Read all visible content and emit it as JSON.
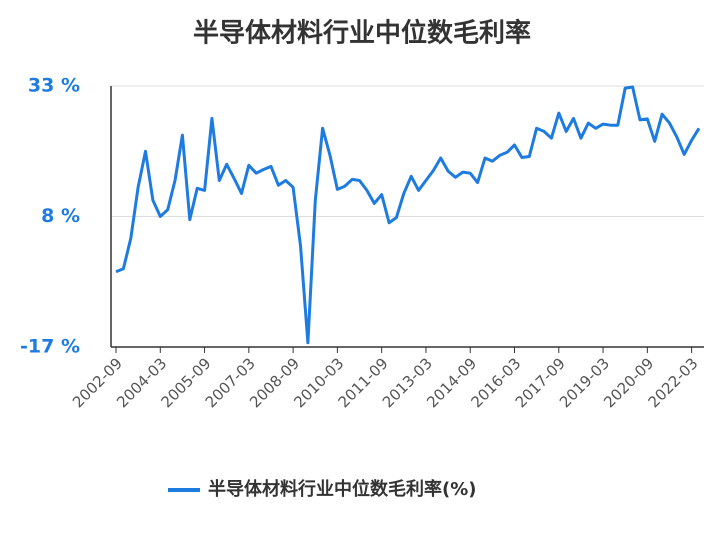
{
  "chart_data": {
    "type": "line",
    "title": "半导体材料行业中位数毛利率",
    "categories": [
      "2002-09",
      null,
      null,
      null,
      null,
      null,
      "2004-03",
      null,
      null,
      null,
      null,
      null,
      "2005-09",
      null,
      null,
      null,
      null,
      null,
      "2007-03",
      null,
      null,
      null,
      null,
      null,
      "2008-09",
      null,
      null,
      null,
      null,
      null,
      "2010-03",
      null,
      null,
      null,
      null,
      null,
      "2011-09",
      null,
      null,
      null,
      null,
      null,
      "2013-03",
      null,
      null,
      null,
      null,
      null,
      "2014-09",
      null,
      null,
      null,
      null,
      null,
      "2016-03",
      null,
      null,
      null,
      null,
      null,
      "2017-09",
      null,
      null,
      null,
      null,
      null,
      "2019-03",
      null,
      null,
      null,
      null,
      null,
      "2020-09",
      null,
      null,
      null,
      null,
      null,
      "2022-03",
      null
    ],
    "series": [
      {
        "name": "半导体材料行业中位数毛利率(%)",
        "color": "#1e7be0",
        "values": [
          -2.6,
          -2.0,
          3.8,
          13.6,
          20.5,
          11.1,
          8.0,
          9.3,
          14.9,
          23.6,
          7.4,
          13.4,
          13.0,
          26.8,
          14.9,
          18.0,
          15.3,
          12.4,
          17.8,
          16.3,
          17.0,
          17.6,
          14.0,
          14.9,
          13.6,
          2.4,
          -16.2,
          11.1,
          24.9,
          19.7,
          13.2,
          13.8,
          15.1,
          14.9,
          13.0,
          10.5,
          12.2,
          6.8,
          7.8,
          12.4,
          15.7,
          13.0,
          14.9,
          16.8,
          19.2,
          16.7,
          15.5,
          16.5,
          16.3,
          14.5,
          19.2,
          18.6,
          19.7,
          20.3,
          21.7,
          19.3,
          19.5,
          24.9,
          24.3,
          23.0,
          27.8,
          24.3,
          26.8,
          23.0,
          25.9,
          24.9,
          25.7,
          25.5,
          25.5,
          32.6,
          32.8,
          26.5,
          26.7,
          22.4,
          27.6,
          25.9,
          23.2,
          19.9,
          22.6,
          24.9
        ]
      }
    ],
    "ylim": [
      -17,
      33
    ],
    "yticks": [
      {
        "value": -17,
        "label": "-17 %"
      },
      {
        "value": 8,
        "label": "8 %"
      },
      {
        "value": 33,
        "label": "33 %"
      }
    ],
    "grid": true
  }
}
